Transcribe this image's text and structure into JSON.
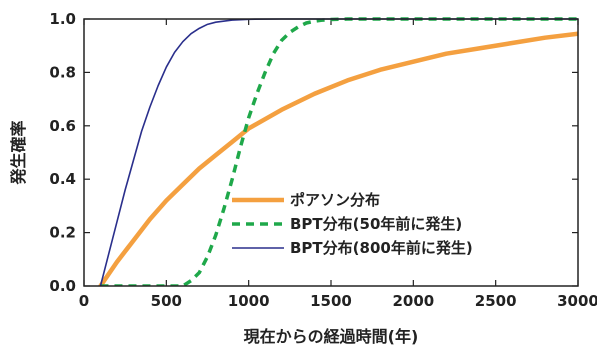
{
  "chart_data": {
    "type": "line",
    "xlabel": "現在からの経過時間(年)",
    "ylabel": "発生確率",
    "xlim": [
      0,
      3000
    ],
    "ylim": [
      0,
      1.0
    ],
    "xticks": [
      0,
      500,
      1000,
      1500,
      2000,
      2500,
      3000
    ],
    "yticks": [
      0.0,
      0.2,
      0.4,
      0.6,
      0.8,
      1.0
    ],
    "grid": false,
    "legend_position": "bottom-right",
    "series": [
      {
        "name": "ポアソン分布",
        "color": "#f4a040",
        "style": "solid-thick",
        "x": [
          100,
          200,
          300,
          400,
          500,
          600,
          700,
          800,
          900,
          1000,
          1200,
          1400,
          1600,
          1800,
          2000,
          2200,
          2400,
          2600,
          2800,
          3000
        ],
        "y": [
          0.0,
          0.09,
          0.17,
          0.25,
          0.32,
          0.38,
          0.44,
          0.49,
          0.54,
          0.59,
          0.66,
          0.72,
          0.77,
          0.81,
          0.84,
          0.87,
          0.89,
          0.91,
          0.93,
          0.945
        ]
      },
      {
        "name": "BPT分布(50年前に発生)",
        "color": "#1fa84a",
        "style": "dashed",
        "x": [
          100,
          300,
          500,
          600,
          650,
          700,
          750,
          800,
          850,
          900,
          950,
          1000,
          1050,
          1100,
          1150,
          1200,
          1250,
          1300,
          1350,
          1400,
          1450,
          1500,
          1600,
          1800,
          2000,
          2500,
          3000
        ],
        "y": [
          0.0,
          0.0,
          0.0,
          0.0,
          0.02,
          0.05,
          0.11,
          0.19,
          0.29,
          0.4,
          0.52,
          0.63,
          0.72,
          0.8,
          0.87,
          0.92,
          0.95,
          0.97,
          0.985,
          0.992,
          0.996,
          0.998,
          1.0,
          1.0,
          1.0,
          1.0,
          1.0
        ]
      },
      {
        "name": "BPT分布(800年前に発生)",
        "color": "#2a2f8c",
        "style": "solid-thin",
        "x": [
          100,
          150,
          200,
          250,
          300,
          350,
          400,
          450,
          500,
          550,
          600,
          650,
          700,
          750,
          800,
          900,
          1000,
          1200,
          1500,
          2000,
          3000
        ],
        "y": [
          0.0,
          0.12,
          0.24,
          0.36,
          0.47,
          0.58,
          0.67,
          0.75,
          0.82,
          0.875,
          0.915,
          0.945,
          0.965,
          0.98,
          0.988,
          0.996,
          0.999,
          1.0,
          1.0,
          1.0,
          1.0
        ]
      }
    ]
  }
}
